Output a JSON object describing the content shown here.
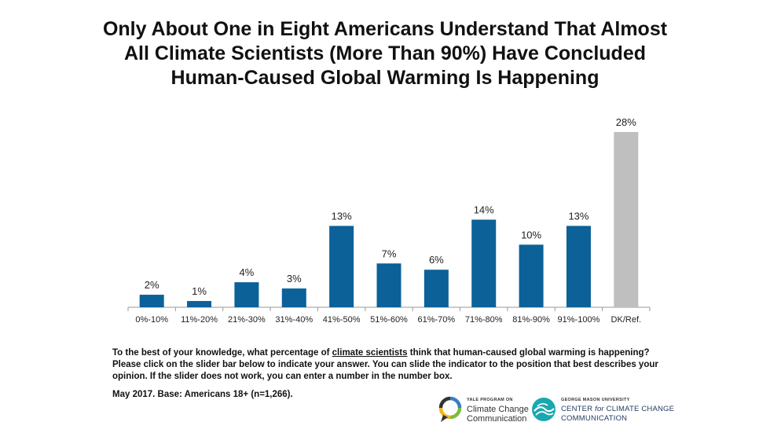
{
  "title_lines": [
    "Only About One in Eight Americans Understand That Almost",
    "All Climate Scientists (More Than 90%) Have Concluded",
    "Human-Caused Global Warming Is Happening"
  ],
  "chart_data": {
    "type": "bar",
    "categories": [
      "0%-10%",
      "11%-20%",
      "21%-30%",
      "31%-40%",
      "41%-50%",
      "51%-60%",
      "61%-70%",
      "71%-80%",
      "81%-90%",
      "91%-100%",
      "DK/Ref."
    ],
    "values": [
      2,
      1,
      4,
      3,
      13,
      7,
      6,
      14,
      10,
      13,
      28
    ],
    "data_labels": [
      "2%",
      "1%",
      "4%",
      "3%",
      "13%",
      "7%",
      "6%",
      "14%",
      "10%",
      "13%",
      "28%"
    ],
    "ylim": [
      0,
      28
    ],
    "grid": false,
    "colors": {
      "main": "#0b6198",
      "dk_ref": "#bfbfbf",
      "axis": "#9a9a9a"
    }
  },
  "question": {
    "before": "To the best of your knowledge, what percentage of ",
    "underlined": "climate scientists",
    "after": " think that human-caused global warming is happening? Please click on the slider bar below to indicate your answer. You can slide the indicator to the position that best describes your opinion. If the slider does not work, you can enter a number in the number box."
  },
  "source": "May 2017. Base: Americans 18+ (n=1,266).",
  "logos": {
    "yale": {
      "small": "YALE PROGRAM ON",
      "line1": "Climate Change",
      "line2": "Communication"
    },
    "gmu": {
      "small": "GEORGE MASON UNIVERSITY",
      "line1_a": "CENTER ",
      "line1_b": "for",
      "line1_c": " CLIMATE CHANGE",
      "line2": "COMMUNICATION",
      "color": "#1aa7b0"
    }
  }
}
